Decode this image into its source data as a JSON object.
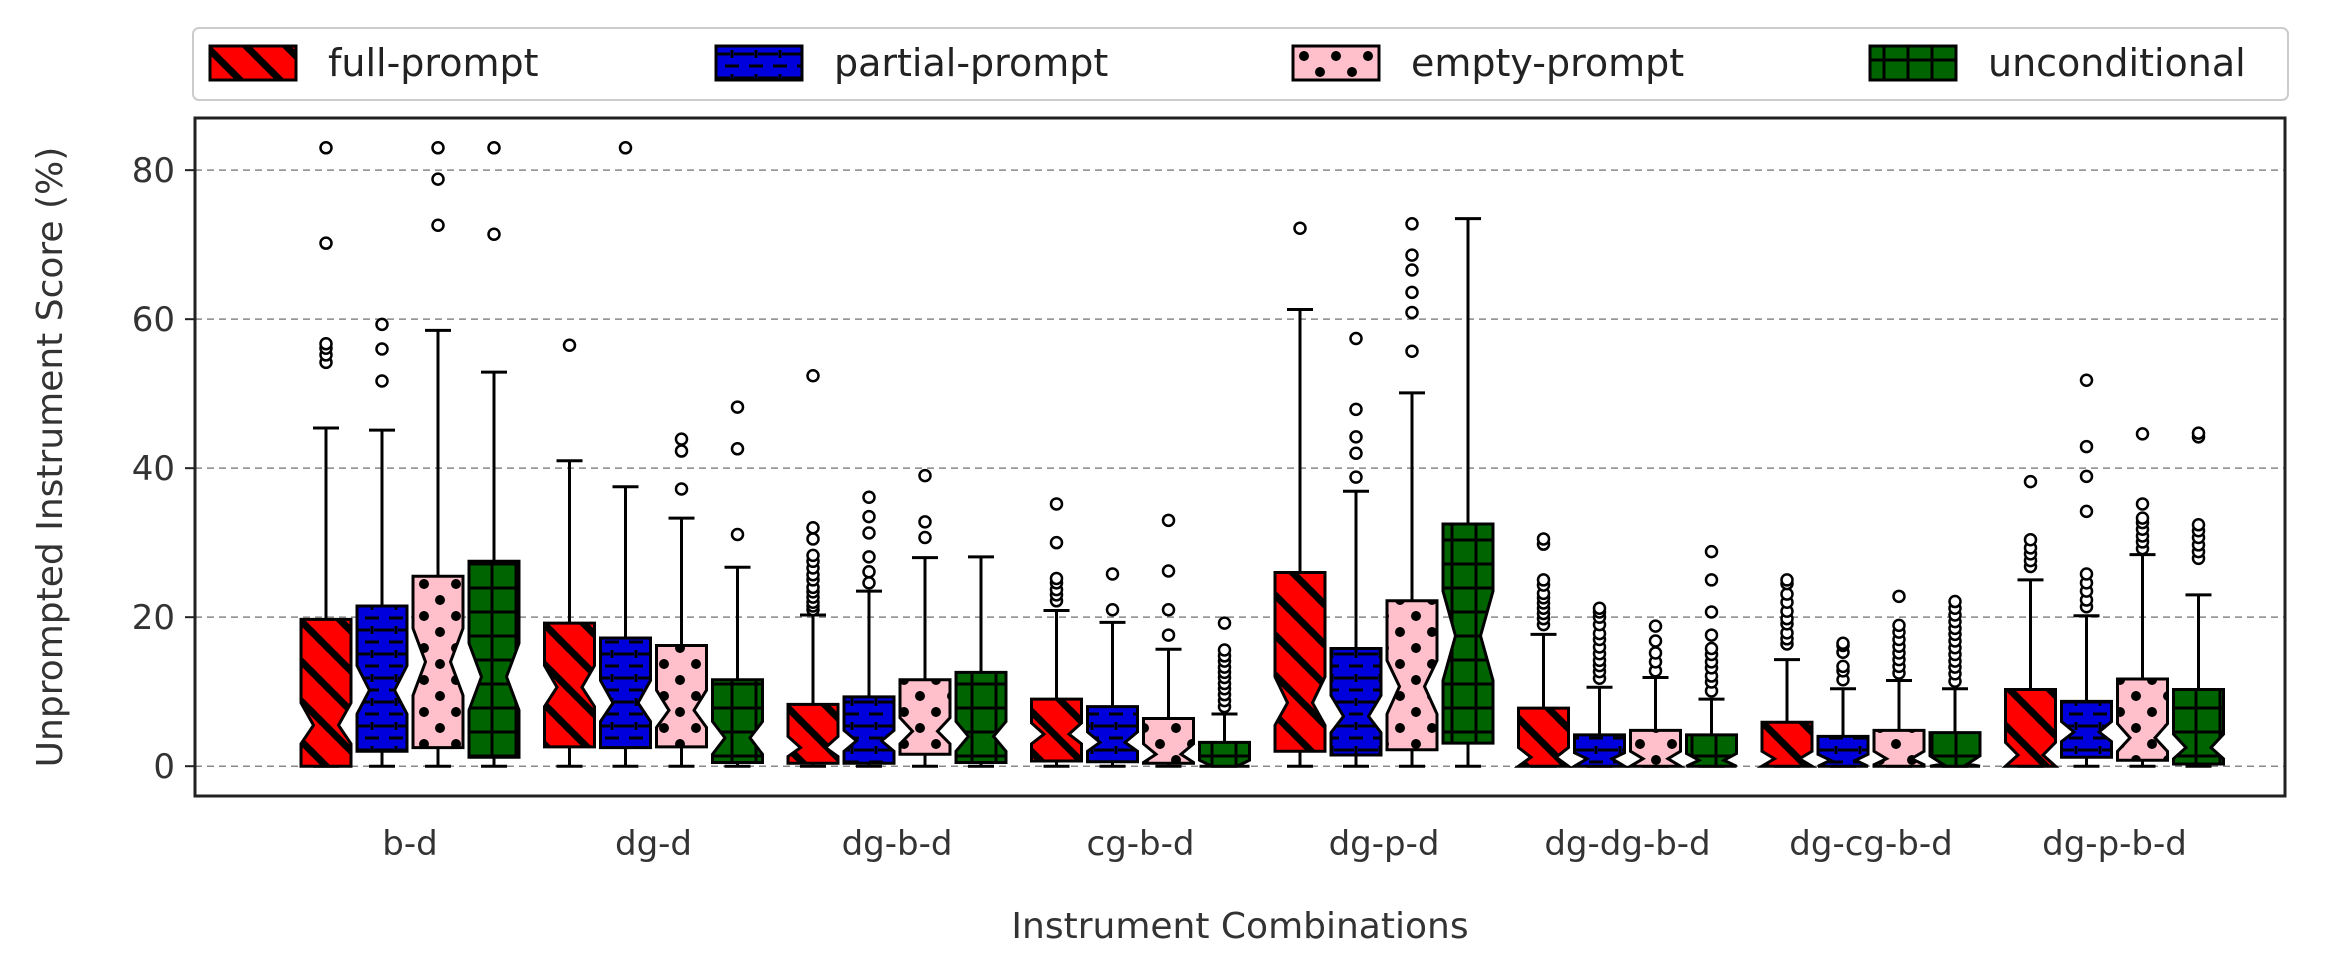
{
  "chart_data": {
    "type": "box",
    "title": "",
    "xlabel": "Instrument Combinations",
    "ylabel": "Unprompted Instrument Score (%)",
    "ylim": [
      -4,
      87
    ],
    "yticks": [
      0,
      20,
      40,
      60,
      80
    ],
    "grid": "horizontal-dashed",
    "legend_position": "top",
    "categories": [
      "b-d",
      "dg-d",
      "dg-b-d",
      "cg-b-d",
      "dg-p-d",
      "dg-dg-b-d",
      "dg-cg-b-d",
      "dg-p-b-d"
    ],
    "series": [
      {
        "name": "full-prompt",
        "color": "#ff0000",
        "pattern": "diagonal-stripes",
        "boxes": [
          {
            "q1": 0,
            "median": 5.5,
            "q3": 19.7,
            "whislo": 0,
            "whishi": 45.4,
            "notch": [
              3,
              8.5
            ],
            "fliers": [
              54.2,
              55.2,
              56.1,
              56.7,
              70.2,
              83
            ]
          },
          {
            "q1": 2.6,
            "median": 10.6,
            "q3": 19.2,
            "whislo": 0,
            "whishi": 41,
            "notch": [
              8,
              13.5
            ],
            "fliers": [
              56.5
            ]
          },
          {
            "q1": 0.4,
            "median": 2.5,
            "q3": 8.3,
            "whislo": 0,
            "whishi": 20.3,
            "notch": [
              1.3,
              4
            ],
            "fliers": [
              21,
              21.5,
              22,
              22.7,
              23.4,
              24,
              25,
              25.7,
              26.6,
              27.5,
              28.3,
              30.5,
              32,
              52.4
            ]
          },
          {
            "q1": 0.7,
            "median": 4.3,
            "q3": 9,
            "whislo": 0,
            "whishi": 20.9,
            "notch": [
              3,
              5.8
            ],
            "fliers": [
              22.2,
              23,
              23.7,
              24.6,
              25.2,
              30,
              35.2
            ]
          },
          {
            "q1": 2,
            "median": 8.5,
            "q3": 26,
            "whislo": 0,
            "whishi": 61.3,
            "notch": [
              5.5,
              12
            ],
            "fliers": [
              72.2
            ]
          },
          {
            "q1": 0,
            "median": 1.2,
            "q3": 7.8,
            "whislo": 0,
            "whishi": 17.7,
            "notch": [
              0,
              2.5
            ],
            "fliers": [
              19,
              19.8,
              20.5,
              21.2,
              21.9,
              22.6,
              23.2,
              24.3,
              25,
              29.8,
              30.5
            ]
          },
          {
            "q1": 0,
            "median": 1,
            "q3": 5.9,
            "whislo": 0,
            "whishi": 14.3,
            "notch": [
              0,
              2
            ],
            "fliers": [
              16.4,
              17.1,
              17.9,
              19.1,
              19.8,
              20.8,
              22,
              23.1,
              24.5,
              25
            ]
          },
          {
            "q1": 0,
            "median": 1.5,
            "q3": 10.3,
            "whislo": 0,
            "whishi": 25,
            "notch": [
              0,
              3.2
            ],
            "fliers": [
              26.8,
              27.6,
              28.5,
              29.3,
              30.4,
              38.2
            ]
          }
        ]
      },
      {
        "name": "partial-prompt",
        "color": "#0000dd",
        "pattern": "dashes",
        "boxes": [
          {
            "q1": 2,
            "median": 10.2,
            "q3": 21.5,
            "whislo": 0,
            "whishi": 45.1,
            "notch": [
              7,
              13.5
            ],
            "fliers": [
              51.7,
              56,
              59.3
            ]
          },
          {
            "q1": 2.5,
            "median": 8.5,
            "q3": 17.2,
            "whislo": 0,
            "whishi": 37.5,
            "notch": [
              6,
              11.5
            ],
            "fliers": [
              83
            ]
          },
          {
            "q1": 0.4,
            "median": 3.4,
            "q3": 9.3,
            "whislo": 0,
            "whishi": 23.5,
            "notch": [
              2,
              4.8
            ],
            "fliers": [
              24.6,
              26.1,
              28.1,
              31.3,
              33.5,
              36.1
            ]
          },
          {
            "q1": 0.6,
            "median": 3.2,
            "q3": 8,
            "whislo": 0,
            "whishi": 19.3,
            "notch": [
              2,
              4.6
            ],
            "fliers": [
              21,
              25.8
            ]
          },
          {
            "q1": 1.5,
            "median": 6.7,
            "q3": 15.8,
            "whislo": 0,
            "whishi": 36.9,
            "notch": [
              4.5,
              9.5
            ],
            "fliers": [
              38.8,
              42,
              44.2,
              47.9,
              57.4
            ]
          },
          {
            "q1": 0,
            "median": 1,
            "q3": 4.2,
            "whislo": 0,
            "whishi": 10.6,
            "notch": [
              0,
              1.8
            ],
            "fliers": [
              11.8,
              12.7,
              13.5,
              14.2,
              15.1,
              16,
              17,
              17.8,
              19,
              20,
              20.7,
              21.2
            ]
          },
          {
            "q1": 0,
            "median": 0.8,
            "q3": 4,
            "whislo": 0,
            "whishi": 10.4,
            "notch": [
              0,
              1.6
            ],
            "fliers": [
              11.6,
              12.8,
              13.4,
              15.3,
              16.2,
              16.5
            ]
          },
          {
            "q1": 1.2,
            "median": 4.6,
            "q3": 8.7,
            "whislo": 0,
            "whishi": 20.2,
            "notch": [
              3.3,
              6
            ],
            "fliers": [
              21.4,
              22.3,
              23.5,
              24.6,
              25.8,
              34.2,
              38.9,
              42.9,
              51.8
            ]
          }
        ]
      },
      {
        "name": "empty-prompt",
        "color": "#ffc0cb",
        "pattern": "dots",
        "boxes": [
          {
            "q1": 2.5,
            "median": 14,
            "q3": 25.5,
            "whislo": 0,
            "whishi": 58.5,
            "notch": [
              9.5,
              18.5
            ],
            "fliers": [
              72.6,
              78.8,
              83
            ]
          },
          {
            "q1": 2.6,
            "median": 7.5,
            "q3": 16.2,
            "whislo": 0,
            "whishi": 33.3,
            "notch": [
              5.2,
              10.2
            ],
            "fliers": [
              37.2,
              42.3,
              43.9
            ]
          },
          {
            "q1": 1.6,
            "median": 4.7,
            "q3": 11.6,
            "whislo": 0,
            "whishi": 28,
            "notch": [
              3,
              6.5
            ],
            "fliers": [
              30.7,
              32.8,
              39
            ]
          },
          {
            "q1": 0.4,
            "median": 1.6,
            "q3": 6.4,
            "whislo": 0,
            "whishi": 15.7,
            "notch": [
              0.5,
              3
            ],
            "fliers": [
              17.6,
              21,
              26.2,
              33
            ]
          },
          {
            "q1": 2.2,
            "median": 10.7,
            "q3": 22.2,
            "whislo": 0,
            "whishi": 50.1,
            "notch": [
              7,
              14.2
            ],
            "fliers": [
              55.7,
              60.9,
              63.6,
              66.6,
              68.6,
              72.8
            ]
          },
          {
            "q1": 0,
            "median": 1,
            "q3": 4.8,
            "whislo": 0,
            "whishi": 11.9,
            "notch": [
              0,
              2
            ],
            "fliers": [
              12.8,
              14,
              15.2,
              16.8,
              18.8
            ]
          },
          {
            "q1": 0,
            "median": 1,
            "q3": 4.8,
            "whislo": 0,
            "whishi": 11.5,
            "notch": [
              0.2,
              2
            ],
            "fliers": [
              12.5,
              13.4,
              14.3,
              15.2,
              16.1,
              17,
              18,
              18.9,
              22.8
            ]
          },
          {
            "q1": 0.8,
            "median": 3.8,
            "q3": 11.7,
            "whislo": 0,
            "whishi": 28.4,
            "notch": [
              2,
              5.7
            ],
            "fliers": [
              29.2,
              30.1,
              30.9,
              31.8,
              32.7,
              33.3,
              35.2,
              44.6
            ]
          }
        ]
      },
      {
        "name": "unconditional",
        "color": "#006400",
        "pattern": "grid",
        "boxes": [
          {
            "q1": 1.2,
            "median": 12,
            "q3": 27.5,
            "whislo": 0,
            "whishi": 52.9,
            "notch": [
              7.5,
              16.5
            ],
            "fliers": [
              71.4,
              83
            ]
          },
          {
            "q1": 0.5,
            "median": 3.8,
            "q3": 11.6,
            "whislo": 0,
            "whishi": 26.7,
            "notch": [
              1.6,
              6
            ],
            "fliers": [
              31.1,
              42.6,
              48.2
            ]
          },
          {
            "q1": 0.5,
            "median": 4,
            "q3": 12.6,
            "whislo": 0,
            "whishi": 28.1,
            "notch": [
              2,
              6
            ],
            "fliers": []
          },
          {
            "q1": 0,
            "median": 0,
            "q3": 3.2,
            "whislo": 0,
            "whishi": 7,
            "notch": [
              0,
              0.8
            ],
            "fliers": [
              8,
              8.8,
              9.6,
              10.4,
              11.1,
              11.9,
              12.6,
              13.3,
              14.1,
              14.8,
              15.6,
              19.2
            ]
          },
          {
            "q1": 3.1,
            "median": 17.5,
            "q3": 32.5,
            "whislo": 0,
            "whishi": 73.5,
            "notch": [
              11.5,
              23.5
            ],
            "fliers": []
          },
          {
            "q1": 0,
            "median": 0.8,
            "q3": 4.2,
            "whislo": 0,
            "whishi": 9,
            "notch": [
              0,
              1.7
            ],
            "fliers": [
              10.1,
              11.3,
              12.1,
              13.2,
              14,
              15,
              15.8,
              17.6,
              20.7,
              25,
              28.8
            ]
          },
          {
            "q1": 0,
            "median": 0.3,
            "q3": 4.5,
            "whislo": 0,
            "whishi": 10.4,
            "notch": [
              0,
              1.4
            ],
            "fliers": [
              11.4,
              12.4,
              13.3,
              14.1,
              15,
              15.9,
              16.8,
              17.7,
              18.5,
              19.4,
              20.3,
              21.2,
              22.1
            ]
          },
          {
            "q1": 0.3,
            "median": 2.5,
            "q3": 10.3,
            "whislo": 0,
            "whishi": 23,
            "notch": [
              1,
              4.3
            ],
            "fliers": [
              27.9,
              28.8,
              29.7,
              30.7,
              31.6,
              32.4,
              44.2,
              44.7
            ]
          }
        ]
      }
    ]
  }
}
